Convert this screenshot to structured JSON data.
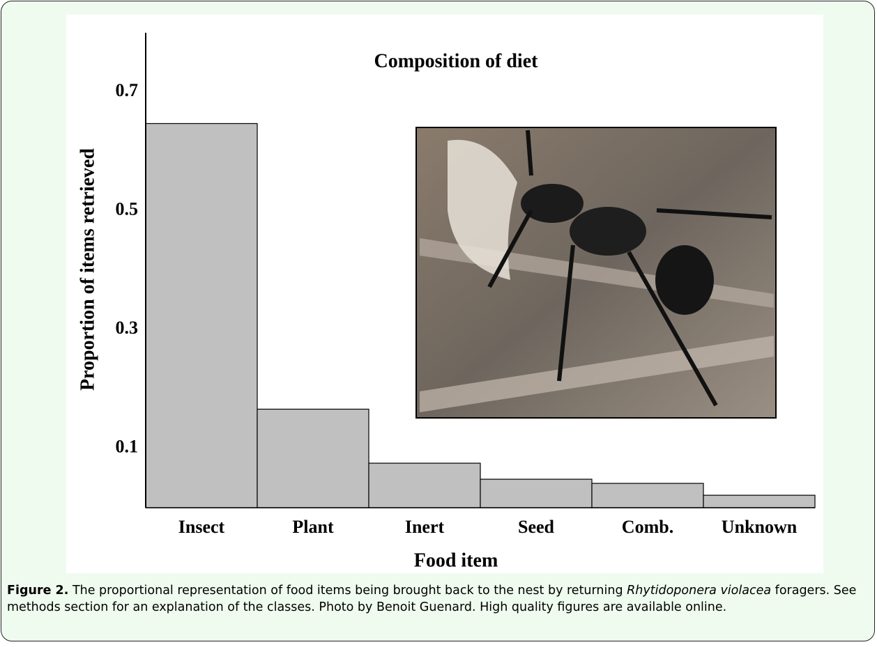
{
  "chart_data": {
    "type": "bar",
    "title": "Composition of diet",
    "xlabel": "Food item",
    "ylabel": "Proportion of items retrieved",
    "categories": [
      "Insect",
      "Plant",
      "Inert",
      "Seed",
      "Comb.",
      "Unknown"
    ],
    "values": [
      0.647,
      0.166,
      0.075,
      0.048,
      0.041,
      0.021
    ],
    "color": "#c0c0c0",
    "ylim": [
      0,
      0.8
    ],
    "yticks": [
      0.1,
      0.3,
      0.5,
      0.7
    ],
    "grid": false
  },
  "caption": {
    "label": "Figure 2.",
    "text_before": "The proportional representation of food items being brought back to the nest by returning",
    "species": "Rhytidoponera violacea",
    "text_after": "foragers. See methods section for an explanation of the classes. Photo by Benoit Guenard. High quality figures are available online."
  }
}
